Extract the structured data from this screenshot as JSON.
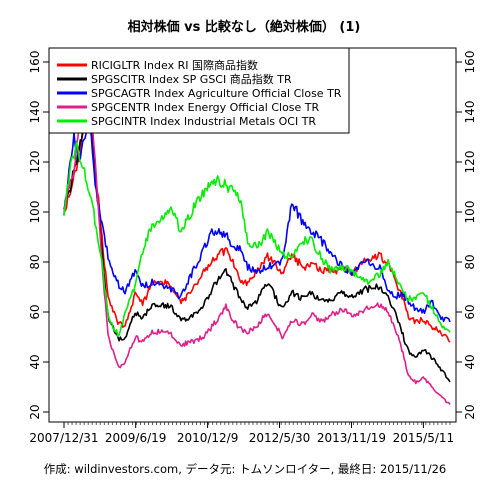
{
  "chart_data": {
    "type": "line",
    "title": "相対株価 vs 比較なし（絶対株価） (1)",
    "footer": "作成: wildinvestors.com, データ元: トムソンロイター, 最終日: 2015/11/26",
    "x_ticks": [
      "2007/12/31",
      "2009/6/19",
      "2010/12/9",
      "2012/5/30",
      "2013/11/19",
      "2015/5/11"
    ],
    "x_range": [
      "2007/12/31",
      "2015/11/26"
    ],
    "y_ticks": [
      20,
      40,
      60,
      80,
      100,
      120,
      140,
      160
    ],
    "ylim": [
      20,
      160
    ],
    "grid": false,
    "legend_position": "top-left",
    "series": [
      {
        "name": "RICIGLTR Index RI 国際商品指数",
        "color": "#ff0000",
        "points": [
          [
            "2007/12/31",
            100
          ],
          [
            "2008/3/15",
            114
          ],
          [
            "2008/5/1",
            124
          ],
          [
            "2008/7/3",
            150
          ],
          [
            "2008/8/20",
            118
          ],
          [
            "2008/10/10",
            90
          ],
          [
            "2008/11/25",
            65
          ],
          [
            "2009/2/15",
            55
          ],
          [
            "2009/4/1",
            55
          ],
          [
            "2009/6/15",
            67
          ],
          [
            "2009/8/10",
            63
          ],
          [
            "2009/10/20",
            71
          ],
          [
            "2010/1/10",
            72
          ],
          [
            "2010/3/10",
            70
          ],
          [
            "2010/5/25",
            64
          ],
          [
            "2010/8/10",
            68
          ],
          [
            "2010/11/10",
            76
          ],
          [
            "2011/1/10",
            81
          ],
          [
            "2011/4/25",
            85
          ],
          [
            "2011/6/25",
            79
          ],
          [
            "2011/8/15",
            73
          ],
          [
            "2011/10/5",
            71
          ],
          [
            "2011/12/20",
            77
          ],
          [
            "2012/3/1",
            82
          ],
          [
            "2012/6/20",
            76
          ],
          [
            "2012/8/30",
            83
          ],
          [
            "2012/11/20",
            78
          ],
          [
            "2013/1/20",
            79
          ],
          [
            "2013/4/15",
            77
          ],
          [
            "2013/7/1",
            76
          ],
          [
            "2013/9/15",
            78
          ],
          [
            "2013/12/1",
            76
          ],
          [
            "2014/3/5",
            81
          ],
          [
            "2014/6/20",
            83
          ],
          [
            "2014/8/20",
            79
          ],
          [
            "2014/10/15",
            72
          ],
          [
            "2014/12/1",
            66
          ],
          [
            "2015/1/20",
            58
          ],
          [
            "2015/3/15",
            56
          ],
          [
            "2015/5/10",
            57
          ],
          [
            "2015/7/10",
            54
          ],
          [
            "2015/9/20",
            52
          ],
          [
            "2015/11/26",
            48
          ]
        ]
      },
      {
        "name": "SPGSCITR Index SP GSCI 商品指数 TR",
        "color": "#000000",
        "points": [
          [
            "2007/12/31",
            100
          ],
          [
            "2008/3/15",
            116
          ],
          [
            "2008/5/1",
            128
          ],
          [
            "2008/7/3",
            147
          ],
          [
            "2008/8/20",
            116
          ],
          [
            "2008/10/10",
            85
          ],
          [
            "2008/11/25",
            58
          ],
          [
            "2009/2/15",
            49
          ],
          [
            "2009/4/1",
            50
          ],
          [
            "2009/6/15",
            60
          ],
          [
            "2009/8/10",
            58
          ],
          [
            "2009/10/20",
            62
          ],
          [
            "2010/1/10",
            63
          ],
          [
            "2010/3/10",
            62
          ],
          [
            "2010/5/25",
            57
          ],
          [
            "2010/8/10",
            58
          ],
          [
            "2010/11/10",
            63
          ],
          [
            "2011/1/10",
            69
          ],
          [
            "2011/4/25",
            77
          ],
          [
            "2011/6/25",
            70
          ],
          [
            "2011/8/15",
            65
          ],
          [
            "2011/10/5",
            62
          ],
          [
            "2011/12/20",
            65
          ],
          [
            "2012/3/1",
            72
          ],
          [
            "2012/6/20",
            61
          ],
          [
            "2012/8/30",
            68
          ],
          [
            "2012/11/20",
            65
          ],
          [
            "2013/1/20",
            68
          ],
          [
            "2013/4/15",
            64
          ],
          [
            "2013/7/1",
            65
          ],
          [
            "2013/9/15",
            68
          ],
          [
            "2013/12/1",
            66
          ],
          [
            "2014/3/5",
            69
          ],
          [
            "2014/6/20",
            70
          ],
          [
            "2014/8/20",
            66
          ],
          [
            "2014/10/15",
            60
          ],
          [
            "2014/12/1",
            52
          ],
          [
            "2015/1/20",
            44
          ],
          [
            "2015/3/15",
            42
          ],
          [
            "2015/5/10",
            45
          ],
          [
            "2015/7/10",
            42
          ],
          [
            "2015/9/20",
            37
          ],
          [
            "2015/11/26",
            32
          ]
        ]
      },
      {
        "name": "SPGCAGTR Index Agriculture Official Close TR",
        "color": "#0000ff",
        "points": [
          [
            "2007/12/31",
            100
          ],
          [
            "2008/3/15",
            130
          ],
          [
            "2008/5/1",
            120
          ],
          [
            "2008/7/3",
            140
          ],
          [
            "2008/8/20",
            110
          ],
          [
            "2008/10/10",
            95
          ],
          [
            "2008/11/25",
            82
          ],
          [
            "2009/2/15",
            70
          ],
          [
            "2009/4/1",
            68
          ],
          [
            "2009/6/15",
            76
          ],
          [
            "2009/8/10",
            70
          ],
          [
            "2009/10/20",
            72
          ],
          [
            "2010/1/10",
            70
          ],
          [
            "2010/3/10",
            69
          ],
          [
            "2010/5/25",
            66
          ],
          [
            "2010/8/10",
            75
          ],
          [
            "2010/11/10",
            85
          ],
          [
            "2011/1/10",
            92
          ],
          [
            "2011/4/25",
            91
          ],
          [
            "2011/6/25",
            85
          ],
          [
            "2011/8/15",
            86
          ],
          [
            "2011/10/5",
            78
          ],
          [
            "2011/12/20",
            76
          ],
          [
            "2012/3/1",
            78
          ],
          [
            "2012/6/20",
            80
          ],
          [
            "2012/8/30",
            104
          ],
          [
            "2012/11/20",
            96
          ],
          [
            "2013/1/20",
            93
          ],
          [
            "2013/4/15",
            88
          ],
          [
            "2013/7/1",
            82
          ],
          [
            "2013/9/15",
            78
          ],
          [
            "2013/12/1",
            76
          ],
          [
            "2014/3/5",
            80
          ],
          [
            "2014/6/20",
            78
          ],
          [
            "2014/8/20",
            68
          ],
          [
            "2014/10/15",
            66
          ],
          [
            "2014/12/1",
            68
          ],
          [
            "2015/1/20",
            64
          ],
          [
            "2015/3/15",
            61
          ],
          [
            "2015/5/10",
            60
          ],
          [
            "2015/7/10",
            64
          ],
          [
            "2015/9/20",
            58
          ],
          [
            "2015/11/26",
            56
          ]
        ]
      },
      {
        "name": "SPGCENTR Index Energy Official Close TR",
        "color": "#e0208a",
        "points": [
          [
            "2007/12/31",
            100
          ],
          [
            "2008/3/15",
            118
          ],
          [
            "2008/5/1",
            135
          ],
          [
            "2008/7/3",
            158
          ],
          [
            "2008/8/20",
            120
          ],
          [
            "2008/10/10",
            80
          ],
          [
            "2008/11/25",
            50
          ],
          [
            "2009/2/15",
            38
          ],
          [
            "2009/4/1",
            40
          ],
          [
            "2009/6/15",
            50
          ],
          [
            "2009/8/10",
            48
          ],
          [
            "2009/10/20",
            52
          ],
          [
            "2010/1/10",
            52
          ],
          [
            "2010/3/10",
            51
          ],
          [
            "2010/5/25",
            47
          ],
          [
            "2010/8/10",
            48
          ],
          [
            "2010/11/10",
            50
          ],
          [
            "2011/1/10",
            54
          ],
          [
            "2011/4/25",
            62
          ],
          [
            "2011/6/25",
            56
          ],
          [
            "2011/8/15",
            53
          ],
          [
            "2011/10/5",
            52
          ],
          [
            "2011/12/20",
            55
          ],
          [
            "2012/3/1",
            60
          ],
          [
            "2012/6/20",
            50
          ],
          [
            "2012/8/30",
            57
          ],
          [
            "2012/11/20",
            55
          ],
          [
            "2013/1/20",
            59
          ],
          [
            "2013/4/15",
            56
          ],
          [
            "2013/7/1",
            59
          ],
          [
            "2013/9/15",
            61
          ],
          [
            "2013/12/1",
            59
          ],
          [
            "2014/3/5",
            61
          ],
          [
            "2014/6/20",
            63
          ],
          [
            "2014/8/20",
            60
          ],
          [
            "2014/10/15",
            53
          ],
          [
            "2014/12/1",
            45
          ],
          [
            "2015/1/20",
            34
          ],
          [
            "2015/3/15",
            32
          ],
          [
            "2015/5/10",
            34
          ],
          [
            "2015/7/10",
            30
          ],
          [
            "2015/9/20",
            26
          ],
          [
            "2015/11/26",
            23
          ]
        ]
      },
      {
        "name": "SPGCINTR Index Industrial Metals OCI TR",
        "color": "#00ee00",
        "points": [
          [
            "2007/12/31",
            100
          ],
          [
            "2008/2/20",
            118
          ],
          [
            "2008/4/1",
            126
          ],
          [
            "2008/6/1",
            116
          ],
          [
            "2008/8/1",
            102
          ],
          [
            "2008/10/10",
            80
          ],
          [
            "2008/11/25",
            58
          ],
          [
            "2009/2/15",
            50
          ],
          [
            "2009/4/1",
            60
          ],
          [
            "2009/6/15",
            70
          ],
          [
            "2009/8/10",
            84
          ],
          [
            "2009/10/20",
            95
          ],
          [
            "2010/1/10",
            98
          ],
          [
            "2010/3/10",
            102
          ],
          [
            "2010/5/25",
            92
          ],
          [
            "2010/8/10",
            100
          ],
          [
            "2010/11/10",
            108
          ],
          [
            "2011/1/10",
            113
          ],
          [
            "2011/4/25",
            111
          ],
          [
            "2011/6/25",
            108
          ],
          [
            "2011/8/15",
            105
          ],
          [
            "2011/10/5",
            88
          ],
          [
            "2011/12/20",
            86
          ],
          [
            "2012/3/1",
            92
          ],
          [
            "2012/6/20",
            83
          ],
          [
            "2012/8/30",
            83
          ],
          [
            "2012/11/20",
            88
          ],
          [
            "2013/1/20",
            89
          ],
          [
            "2013/4/15",
            81
          ],
          [
            "2013/7/1",
            76
          ],
          [
            "2013/9/15",
            78
          ],
          [
            "2013/12/1",
            76
          ],
          [
            "2014/3/5",
            72
          ],
          [
            "2014/6/20",
            75
          ],
          [
            "2014/8/20",
            80
          ],
          [
            "2014/10/15",
            74
          ],
          [
            "2014/12/1",
            70
          ],
          [
            "2015/1/20",
            65
          ],
          [
            "2015/3/15",
            66
          ],
          [
            "2015/5/10",
            68
          ],
          [
            "2015/7/10",
            62
          ],
          [
            "2015/9/20",
            55
          ],
          [
            "2015/11/26",
            52
          ]
        ]
      }
    ]
  }
}
